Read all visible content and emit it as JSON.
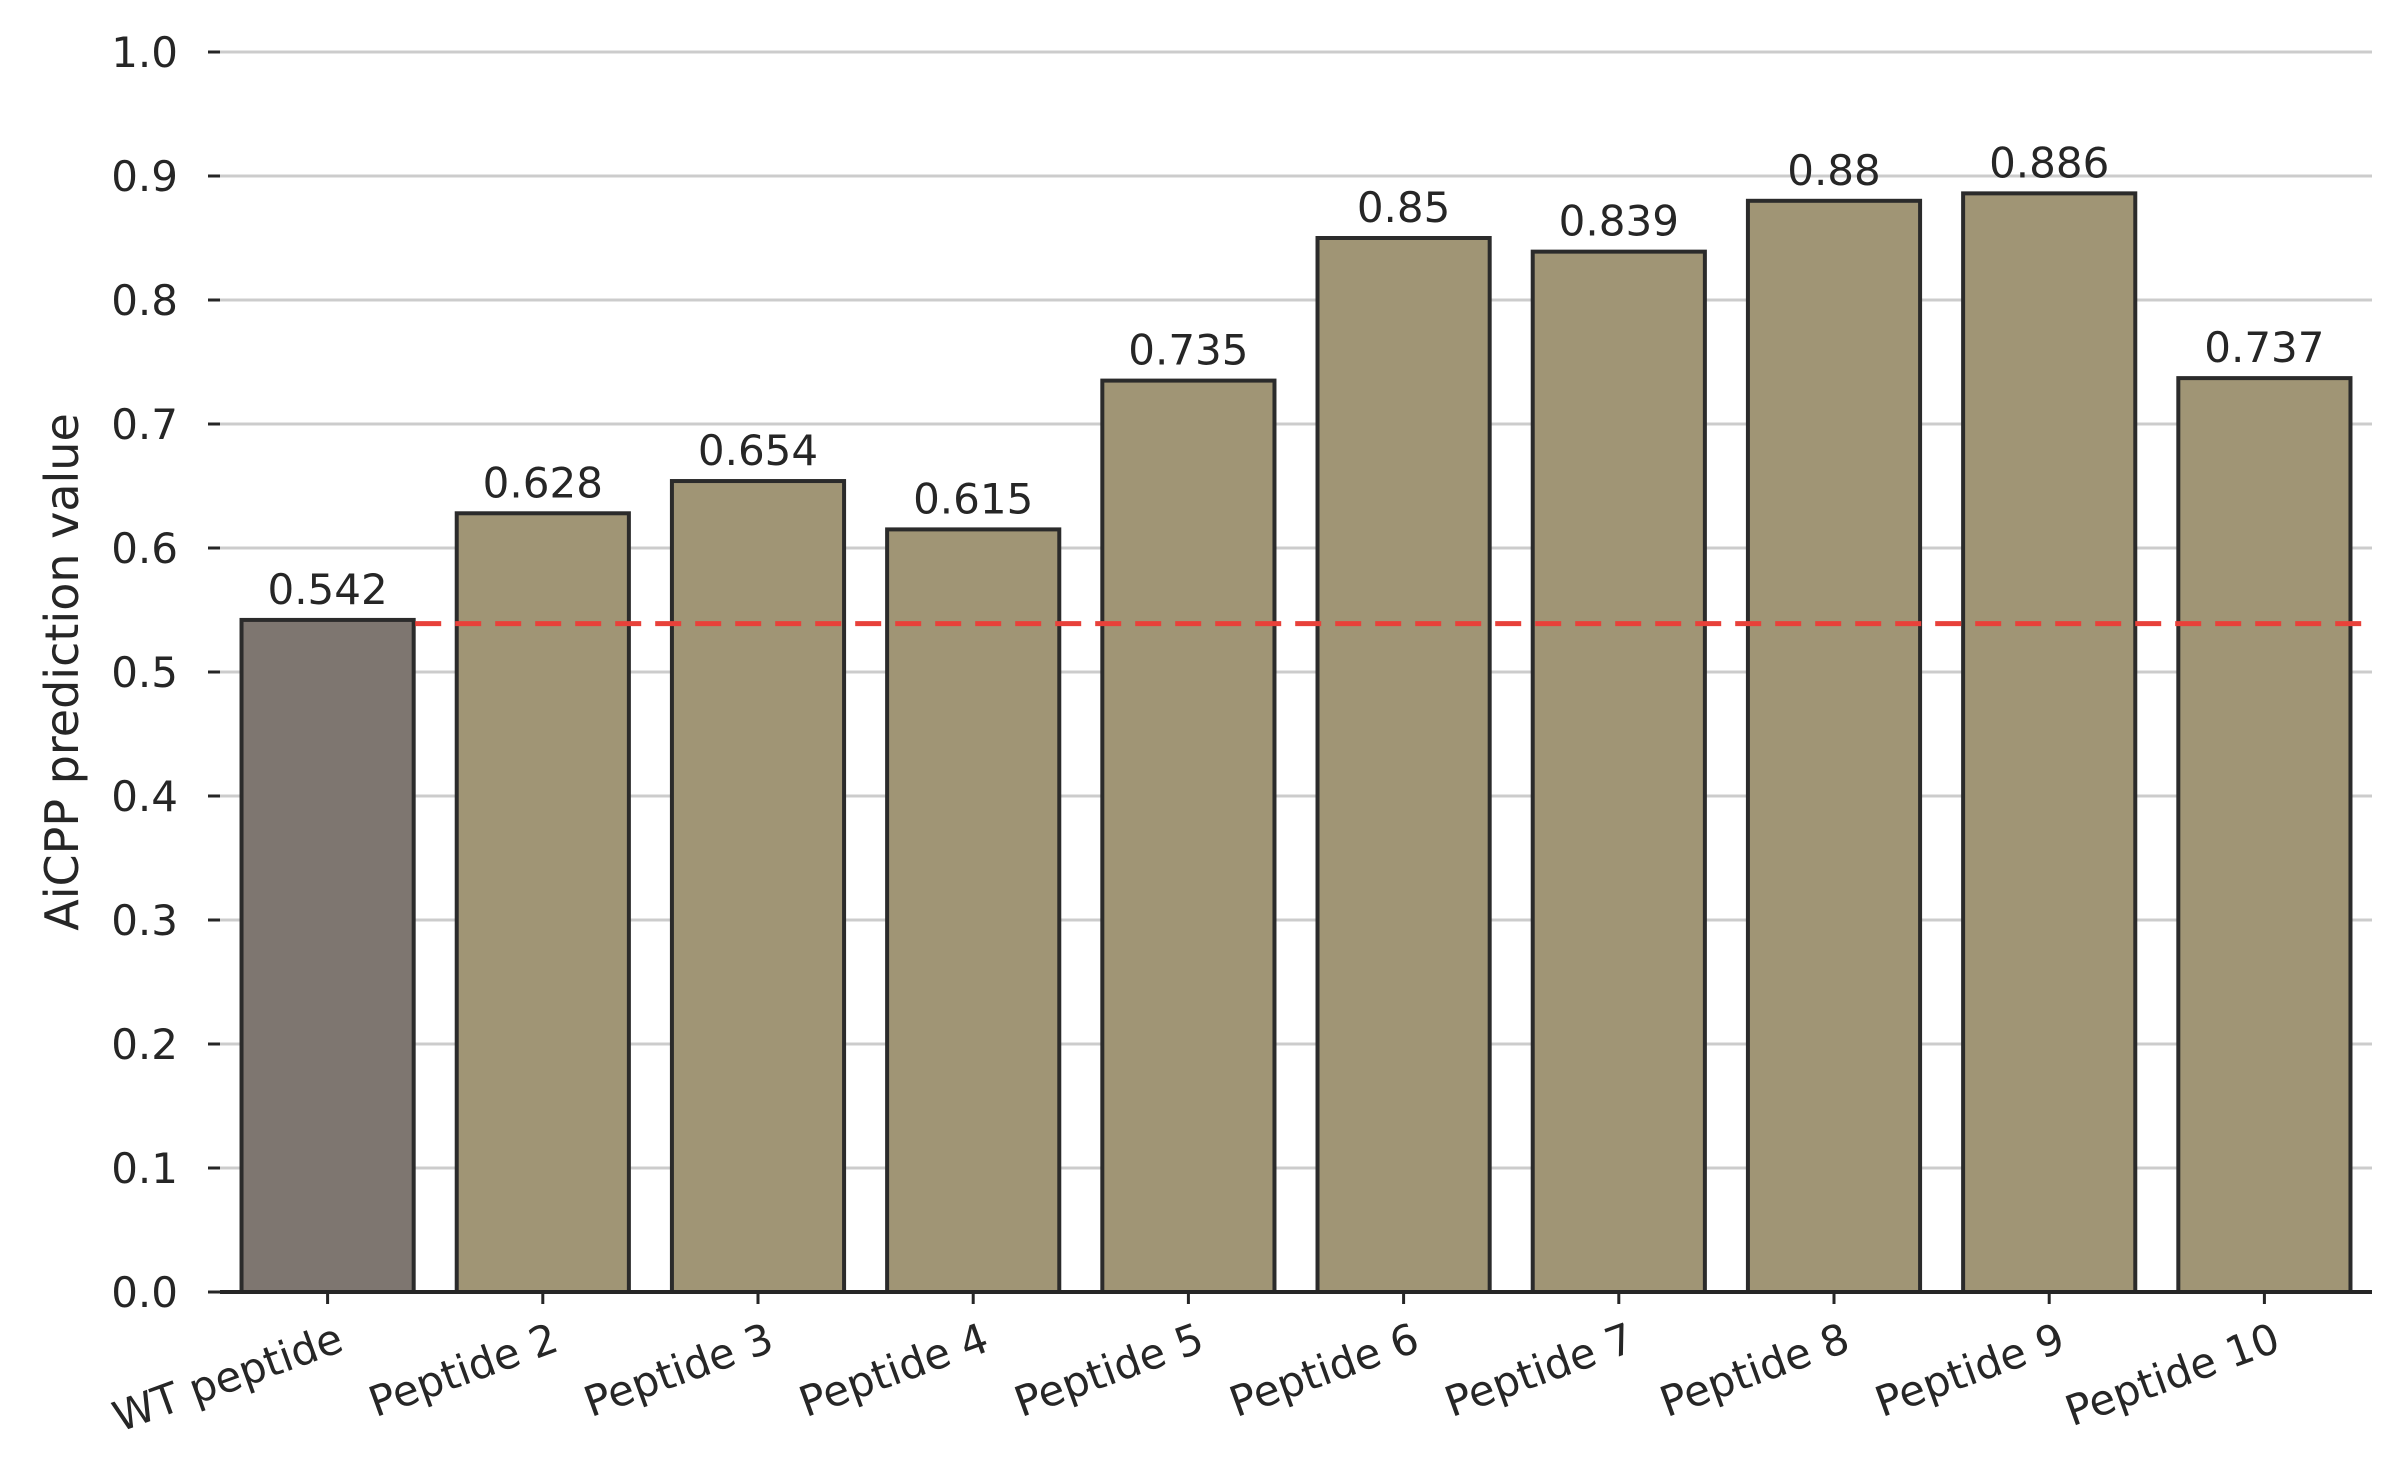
{
  "chart_data": {
    "type": "bar",
    "title": "",
    "xlabel": "",
    "ylabel": "AiCPP prediction value",
    "categories": [
      "WT peptide",
      "Peptide 2",
      "Peptide 3",
      "Peptide 4",
      "Peptide 5",
      "Peptide 6",
      "Peptide 7",
      "Peptide 8",
      "Peptide 9",
      "Peptide 10"
    ],
    "values": [
      0.542,
      0.628,
      0.654,
      0.615,
      0.735,
      0.85,
      0.839,
      0.88,
      0.886,
      0.737
    ],
    "value_labels": [
      "0.542",
      "0.628",
      "0.654",
      "0.615",
      "0.735",
      "0.85",
      "0.839",
      "0.88",
      "0.886",
      "0.737"
    ],
    "ylim": [
      0,
      1.0
    ],
    "yticks": [
      "0.0",
      "0.1",
      "0.2",
      "0.3",
      "0.4",
      "0.5",
      "0.6",
      "0.7",
      "0.8",
      "0.9",
      "1.0"
    ],
    "reference_line": {
      "value": 0.539,
      "style": "dashed",
      "start_category": "Peptide 2"
    },
    "grid": true,
    "legend": "none",
    "colors": {
      "baseline_bar": "#7e7670",
      "variant_bar": "#a09575",
      "bar_edge": "#2b2b2b",
      "grid": "#cccccc",
      "axis": "#262626",
      "reference_line": "#e8413a"
    }
  }
}
